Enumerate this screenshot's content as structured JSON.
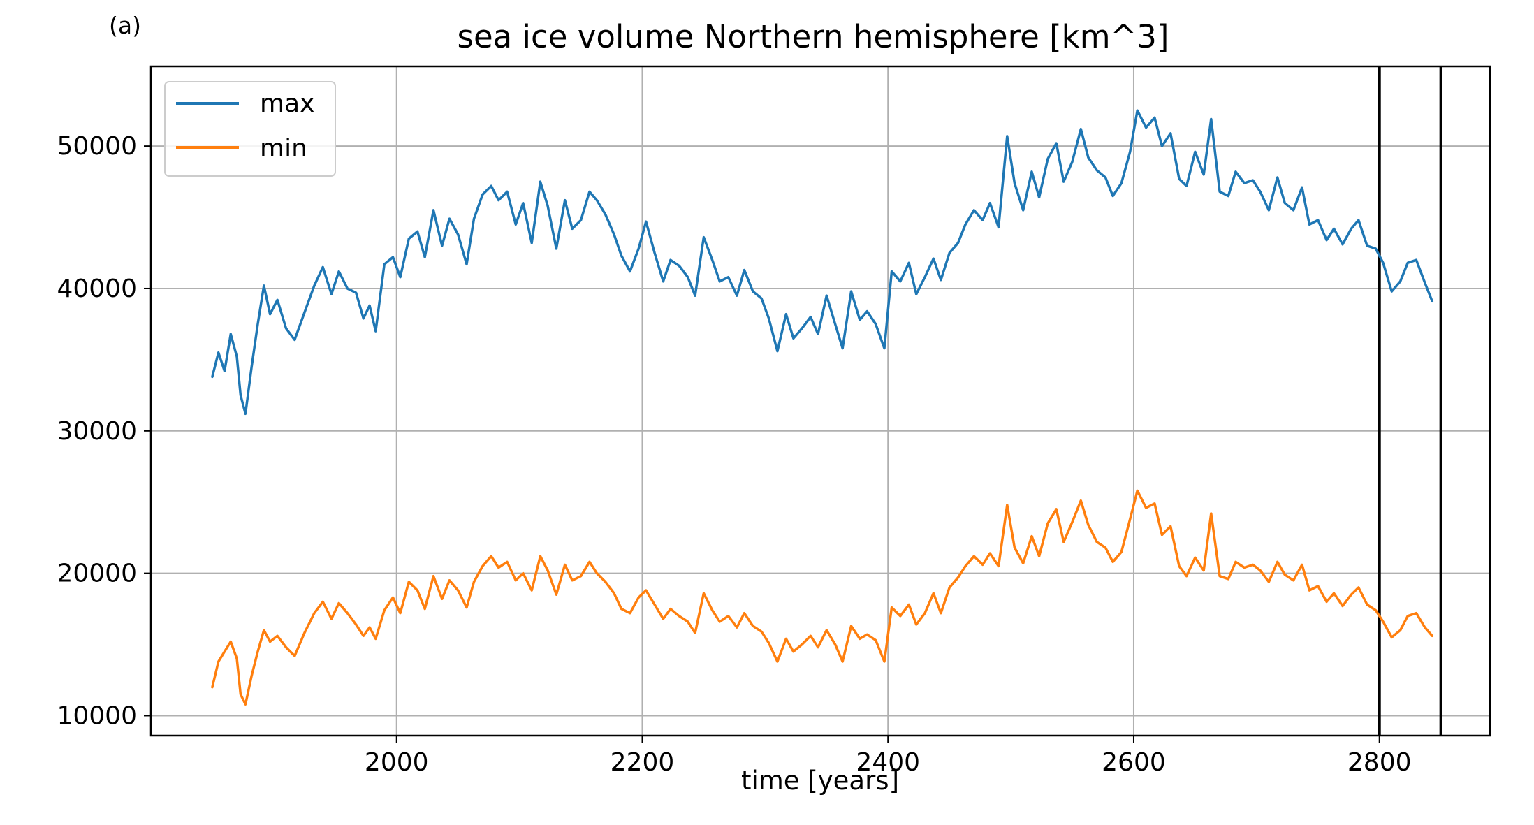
{
  "panel_label": "(a)",
  "chart_data": {
    "type": "line",
    "title": "sea ice volume Northern hemisphere [km^3]",
    "xlabel": "time [years]",
    "ylabel": "",
    "xlim": [
      1800,
      2890
    ],
    "ylim": [
      8600,
      55600
    ],
    "xticks": [
      2000,
      2200,
      2400,
      2600,
      2800
    ],
    "yticks": [
      10000,
      20000,
      30000,
      40000,
      50000
    ],
    "grid": true,
    "legend_position": "top-left",
    "vertical_lines": [
      2800,
      2850
    ],
    "series": [
      {
        "name": "max",
        "color": "#1f77b4",
        "x": [
          1850,
          1855,
          1860,
          1865,
          1870,
          1873,
          1877,
          1882,
          1887,
          1892,
          1897,
          1903,
          1910,
          1917,
          1925,
          1933,
          1940,
          1947,
          1953,
          1960,
          1967,
          1973,
          1978,
          1983,
          1990,
          1997,
          2003,
          2010,
          2017,
          2023,
          2030,
          2037,
          2043,
          2050,
          2057,
          2063,
          2070,
          2077,
          2083,
          2090,
          2097,
          2103,
          2110,
          2117,
          2123,
          2130,
          2137,
          2143,
          2150,
          2157,
          2163,
          2170,
          2177,
          2183,
          2190,
          2197,
          2203,
          2210,
          2217,
          2223,
          2230,
          2237,
          2243,
          2250,
          2257,
          2263,
          2270,
          2277,
          2283,
          2290,
          2297,
          2303,
          2310,
          2317,
          2323,
          2330,
          2337,
          2343,
          2350,
          2357,
          2363,
          2370,
          2377,
          2383,
          2390,
          2397,
          2403,
          2410,
          2417,
          2423,
          2430,
          2437,
          2443,
          2450,
          2457,
          2463,
          2470,
          2477,
          2483,
          2490,
          2497,
          2503,
          2510,
          2517,
          2523,
          2530,
          2537,
          2543,
          2550,
          2557,
          2563,
          2570,
          2577,
          2583,
          2590,
          2597,
          2603,
          2610,
          2617,
          2623,
          2630,
          2637,
          2643,
          2650,
          2657,
          2663,
          2670,
          2677,
          2683,
          2690,
          2697,
          2703,
          2710,
          2717,
          2723,
          2730,
          2737,
          2743,
          2750,
          2757,
          2763,
          2770,
          2777,
          2783,
          2790,
          2797,
          2803,
          2810,
          2817,
          2823,
          2830,
          2837,
          2843
        ],
        "values": [
          33800,
          35500,
          34200,
          36800,
          35200,
          32500,
          31200,
          34500,
          37500,
          40200,
          38200,
          39200,
          37200,
          36400,
          38300,
          40200,
          41500,
          39600,
          41200,
          40000,
          39700,
          37900,
          38800,
          37000,
          41700,
          42200,
          40800,
          43500,
          44000,
          42200,
          45500,
          43000,
          44900,
          43800,
          41700,
          44900,
          46600,
          47200,
          46200,
          46800,
          44500,
          46000,
          43200,
          47500,
          45800,
          42800,
          46200,
          44200,
          44800,
          46800,
          46200,
          45200,
          43800,
          42300,
          41200,
          42800,
          44700,
          42500,
          40500,
          42000,
          41600,
          40800,
          39500,
          43600,
          42000,
          40500,
          40800,
          39500,
          41300,
          39800,
          39300,
          37900,
          35600,
          38200,
          36500,
          37200,
          38000,
          36800,
          39500,
          37500,
          35800,
          39800,
          37800,
          38400,
          37500,
          35800,
          41200,
          40500,
          41800,
          39600,
          40800,
          42100,
          40600,
          42500,
          43200,
          44500,
          45500,
          44800,
          46000,
          44300,
          50700,
          47400,
          45500,
          48200,
          46400,
          49100,
          50200,
          47500,
          48900,
          51200,
          49200,
          48300,
          47800,
          46500,
          47400,
          49600,
          52500,
          51300,
          52000,
          50000,
          50900,
          47700,
          47200,
          49600,
          48000,
          51900,
          46800,
          46500,
          48200,
          47400,
          47600,
          46800,
          45500,
          47800,
          46000,
          45500,
          47100,
          44500,
          44800,
          43400,
          44200,
          43100,
          44200,
          44800,
          43000,
          42800,
          41800,
          39800,
          40500,
          41800,
          42000,
          40400,
          39100
        ]
      },
      {
        "name": "min",
        "color": "#ff7f0e",
        "x": [
          1850,
          1855,
          1860,
          1865,
          1870,
          1873,
          1877,
          1882,
          1887,
          1892,
          1897,
          1903,
          1910,
          1917,
          1925,
          1933,
          1940,
          1947,
          1953,
          1960,
          1967,
          1973,
          1978,
          1983,
          1990,
          1997,
          2003,
          2010,
          2017,
          2023,
          2030,
          2037,
          2043,
          2050,
          2057,
          2063,
          2070,
          2077,
          2083,
          2090,
          2097,
          2103,
          2110,
          2117,
          2123,
          2130,
          2137,
          2143,
          2150,
          2157,
          2163,
          2170,
          2177,
          2183,
          2190,
          2197,
          2203,
          2210,
          2217,
          2223,
          2230,
          2237,
          2243,
          2250,
          2257,
          2263,
          2270,
          2277,
          2283,
          2290,
          2297,
          2303,
          2310,
          2317,
          2323,
          2330,
          2337,
          2343,
          2350,
          2357,
          2363,
          2370,
          2377,
          2383,
          2390,
          2397,
          2403,
          2410,
          2417,
          2423,
          2430,
          2437,
          2443,
          2450,
          2457,
          2463,
          2470,
          2477,
          2483,
          2490,
          2497,
          2503,
          2510,
          2517,
          2523,
          2530,
          2537,
          2543,
          2550,
          2557,
          2563,
          2570,
          2577,
          2583,
          2590,
          2597,
          2603,
          2610,
          2617,
          2623,
          2630,
          2637,
          2643,
          2650,
          2657,
          2663,
          2670,
          2677,
          2683,
          2690,
          2697,
          2703,
          2710,
          2717,
          2723,
          2730,
          2737,
          2743,
          2750,
          2757,
          2763,
          2770,
          2777,
          2783,
          2790,
          2797,
          2803,
          2810,
          2817,
          2823,
          2830,
          2837,
          2843
        ],
        "values": [
          12000,
          13800,
          14500,
          15200,
          14000,
          11500,
          10800,
          12800,
          14500,
          16000,
          15200,
          15600,
          14800,
          14200,
          15800,
          17200,
          18000,
          16800,
          17900,
          17200,
          16400,
          15600,
          16200,
          15400,
          17400,
          18300,
          17200,
          19400,
          18800,
          17500,
          19800,
          18200,
          19500,
          18800,
          17600,
          19400,
          20500,
          21200,
          20400,
          20800,
          19500,
          20000,
          18800,
          21200,
          20200,
          18500,
          20600,
          19500,
          19800,
          20800,
          20000,
          19400,
          18600,
          17500,
          17200,
          18300,
          18800,
          17800,
          16800,
          17500,
          17000,
          16600,
          15800,
          18600,
          17400,
          16600,
          17000,
          16200,
          17200,
          16300,
          15900,
          15100,
          13800,
          15400,
          14500,
          15000,
          15600,
          14800,
          16000,
          15000,
          13800,
          16300,
          15400,
          15700,
          15300,
          13800,
          17600,
          17000,
          17800,
          16400,
          17200,
          18600,
          17200,
          19000,
          19700,
          20500,
          21200,
          20600,
          21400,
          20500,
          24800,
          21800,
          20700,
          22600,
          21200,
          23500,
          24500,
          22200,
          23600,
          25100,
          23400,
          22200,
          21800,
          20800,
          21500,
          23800,
          25800,
          24600,
          24900,
          22700,
          23300,
          20500,
          19800,
          21100,
          20200,
          24200,
          19800,
          19600,
          20800,
          20400,
          20600,
          20200,
          19400,
          20800,
          19900,
          19500,
          20600,
          18800,
          19100,
          18000,
          18600,
          17700,
          18500,
          19000,
          17800,
          17400,
          16600,
          15500,
          16000,
          17000,
          17200,
          16200,
          15600
        ]
      }
    ]
  }
}
